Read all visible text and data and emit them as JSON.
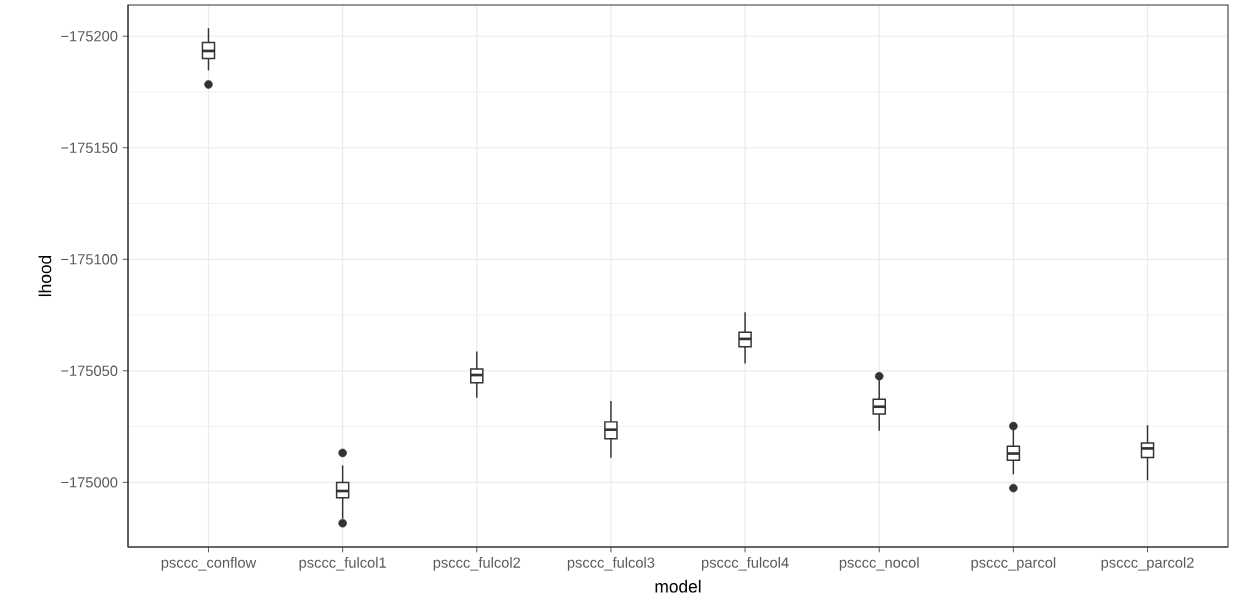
{
  "chart_data": {
    "type": "box",
    "xlabel": "model",
    "ylabel": "lhood",
    "categories": [
      "psccc_conflow",
      "psccc_fulcol1",
      "psccc_fulcol2",
      "psccc_fulcol3",
      "psccc_fulcol4",
      "psccc_nocol",
      "psccc_parcol",
      "psccc_parcol2"
    ],
    "boxes": [
      {
        "low": -175203.6,
        "q1": -175197.2,
        "median": -175193.4,
        "q3": -175190.0,
        "high": -175184.7,
        "outliers": [
          -175178.4
        ]
      },
      {
        "low": -175007.6,
        "q1": -174999.9,
        "median": -174996.1,
        "q3": -174993.1,
        "high": -174983.7,
        "outliers": [
          -175013.2,
          -174981.7
        ]
      },
      {
        "low": -175058.6,
        "q1": -175050.8,
        "median": -175048.1,
        "q3": -175044.6,
        "high": -175037.9
      },
      {
        "low": -175036.5,
        "q1": -175027.1,
        "median": -175023.6,
        "q3": -175019.5,
        "high": -175011.0
      },
      {
        "low": -175076.3,
        "q1": -175067.3,
        "median": -175064.3,
        "q3": -175060.8,
        "high": -175053.3
      },
      {
        "low": -175045.8,
        "q1": -175037.2,
        "median": -175033.9,
        "q3": -175030.6,
        "high": -175023.1,
        "outliers": [
          -175047.6
        ]
      },
      {
        "low": -175023.4,
        "q1": -175016.2,
        "median": -175012.9,
        "q3": -175009.9,
        "high": -175003.6,
        "outliers": [
          -175025.2,
          -174997.4
        ]
      },
      {
        "low": -175025.6,
        "q1": -175017.6,
        "median": -175015.2,
        "q3": -175011.1,
        "high": -175000.9
      }
    ],
    "color": "#333333",
    "ylim": [
      -174971,
      -175214
    ],
    "yticks": [
      {
        "value": -175200,
        "label": "−175200"
      },
      {
        "value": -175150,
        "label": "−175150"
      },
      {
        "value": -175100,
        "label": "−175100"
      },
      {
        "value": -175050,
        "label": "−175050"
      },
      {
        "value": -175000,
        "label": "−175000"
      }
    ],
    "grid": true
  }
}
